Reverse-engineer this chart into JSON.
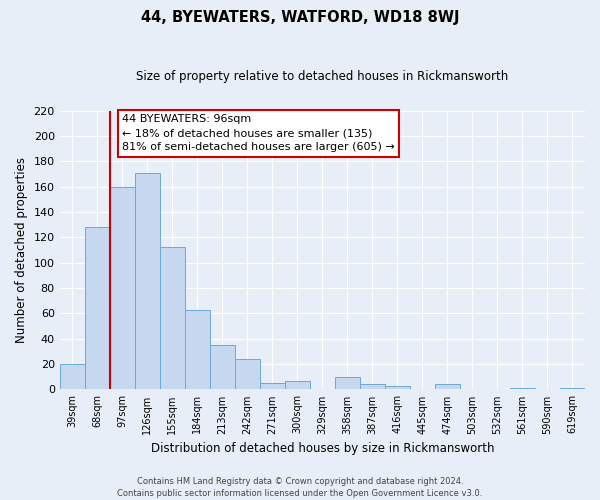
{
  "title": "44, BYEWATERS, WATFORD, WD18 8WJ",
  "subtitle": "Size of property relative to detached houses in Rickmansworth",
  "xlabel": "Distribution of detached houses by size in Rickmansworth",
  "ylabel": "Number of detached properties",
  "categories": [
    "39sqm",
    "68sqm",
    "97sqm",
    "126sqm",
    "155sqm",
    "184sqm",
    "213sqm",
    "242sqm",
    "271sqm",
    "300sqm",
    "329sqm",
    "358sqm",
    "387sqm",
    "416sqm",
    "445sqm",
    "474sqm",
    "503sqm",
    "532sqm",
    "561sqm",
    "590sqm",
    "619sqm"
  ],
  "values": [
    20,
    128,
    160,
    171,
    112,
    63,
    35,
    24,
    5,
    7,
    0,
    10,
    4,
    3,
    0,
    4,
    0,
    0,
    1,
    0,
    1
  ],
  "bar_color": "#c5d8ef",
  "bar_edge_color": "#6aaad4",
  "vline_index": 2,
  "vline_color": "#cc0000",
  "ylim": [
    0,
    220
  ],
  "yticks": [
    0,
    20,
    40,
    60,
    80,
    100,
    120,
    140,
    160,
    180,
    200,
    220
  ],
  "annotation_title": "44 BYEWATERS: 96sqm",
  "annotation_line1": "← 18% of detached houses are smaller (135)",
  "annotation_line2": "81% of semi-detached houses are larger (605) →",
  "annotation_box_facecolor": "#ffffff",
  "annotation_box_edgecolor": "#cc0000",
  "footer_line1": "Contains HM Land Registry data © Crown copyright and database right 2024.",
  "footer_line2": "Contains public sector information licensed under the Open Government Licence v3.0.",
  "background_color": "#e8eef7",
  "plot_bg_color": "#e8eef7",
  "grid_color": "#ffffff"
}
